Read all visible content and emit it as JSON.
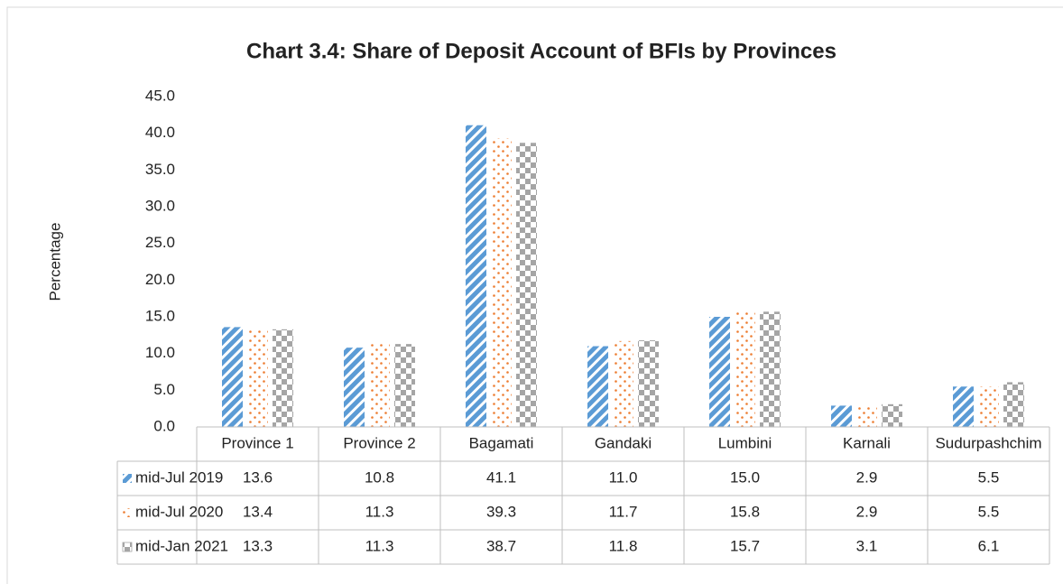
{
  "chart_data": {
    "type": "bar",
    "title": "Chart 3.4: Share of Deposit Account of BFIs by Provinces",
    "y_label": "Percentage",
    "categories": [
      "Province 1",
      "Province 2",
      "Bagamati",
      "Gandaki",
      "Lumbini",
      "Karnali",
      "Sudurpashchim"
    ],
    "series": [
      {
        "name": "mid-Jul 2019",
        "color": "#5b9bd5",
        "pattern": "diagonal-stripes",
        "values": [
          13.6,
          10.8,
          41.1,
          11.0,
          15.0,
          2.9,
          5.5
        ],
        "value_labels": [
          "13.6",
          "10.8",
          "41.1",
          "11.0",
          "15.0",
          "2.9",
          "5.5"
        ]
      },
      {
        "name": "mid-Jul 2020",
        "color": "#ed7d31",
        "pattern": "dots",
        "values": [
          13.4,
          11.3,
          39.3,
          11.7,
          15.8,
          2.9,
          5.5
        ],
        "value_labels": [
          "13.4",
          "11.3",
          "39.3",
          "11.7",
          "15.8",
          "2.9",
          "5.5"
        ]
      },
      {
        "name": "mid-Jan 2021",
        "color": "#a5a5a5",
        "pattern": "checker",
        "values": [
          13.3,
          11.3,
          38.7,
          11.8,
          15.7,
          3.1,
          6.1
        ],
        "value_labels": [
          "13.3",
          "11.3",
          "38.7",
          "11.8",
          "15.7",
          "3.1",
          "6.1"
        ]
      }
    ],
    "ylim": [
      0,
      45
    ],
    "yticks": [
      {
        "value": 0,
        "label": "0.0"
      },
      {
        "value": 5,
        "label": "5.0"
      },
      {
        "value": 10,
        "label": "10.0"
      },
      {
        "value": 15,
        "label": "15.0"
      },
      {
        "value": 20,
        "label": "20.0"
      },
      {
        "value": 25,
        "label": "25.0"
      },
      {
        "value": 30,
        "label": "30.0"
      },
      {
        "value": 35,
        "label": "35.0"
      },
      {
        "value": 40,
        "label": "40.0"
      },
      {
        "value": 45,
        "label": "45.0"
      }
    ],
    "grid": false,
    "data_table": true
  }
}
